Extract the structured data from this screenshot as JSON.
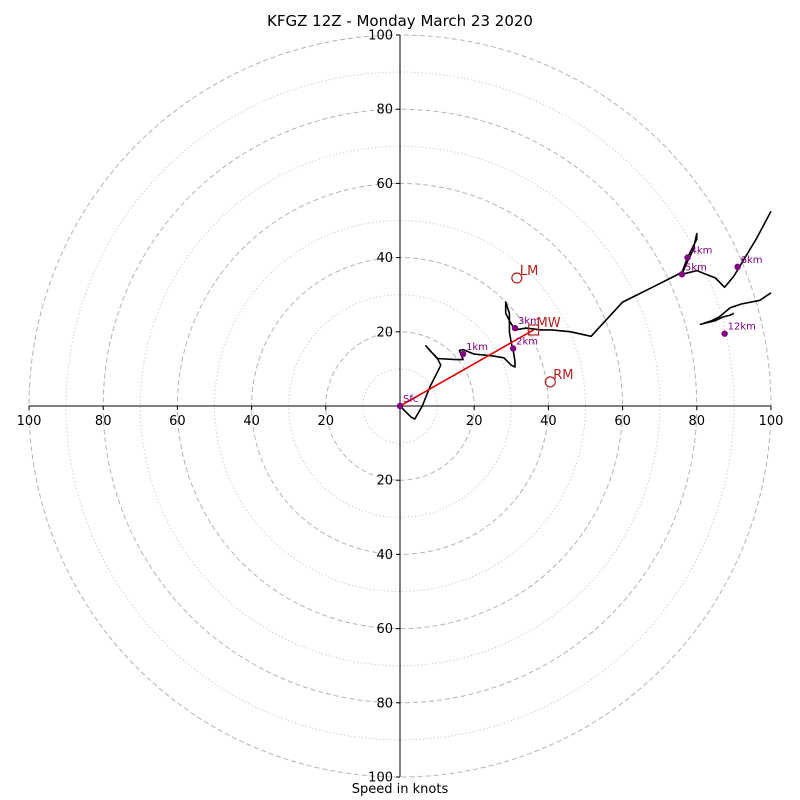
{
  "chart_data": {
    "type": "line",
    "title": "KFGZ 12Z - Monday March 23 2020",
    "xlabel": "Speed in knots",
    "ylabel": "",
    "xlim": [
      -100,
      100
    ],
    "ylim": [
      -100,
      100
    ],
    "rings_dashed": [
      20,
      40,
      60,
      80,
      100
    ],
    "rings_dotted": [
      10,
      30,
      50,
      70,
      90
    ],
    "tick_labels": {
      "top": [
        "20",
        "40",
        "60",
        "80",
        "100"
      ],
      "bottom": [
        "20",
        "40",
        "60",
        "80",
        "100"
      ],
      "left": [
        "20",
        "40",
        "60",
        "80",
        "100"
      ],
      "right": [
        "20",
        "40",
        "60",
        "80",
        "100"
      ]
    },
    "hodograph": {
      "color": "#000000",
      "points": [
        [
          0.0,
          0.0
        ],
        [
          2,
          -2
        ],
        [
          3,
          -3
        ],
        [
          4,
          -3.5
        ],
        [
          6,
          0
        ],
        [
          8,
          5
        ],
        [
          10,
          9
        ],
        [
          11,
          11
        ],
        [
          10,
          13
        ],
        [
          8,
          15
        ],
        [
          7,
          16.2
        ],
        [
          10,
          12.8
        ],
        [
          15,
          12.5
        ],
        [
          17,
          12.5
        ],
        [
          16,
          15
        ],
        [
          17,
          15.2
        ],
        [
          20,
          14
        ],
        [
          25,
          13.5
        ],
        [
          28,
          13
        ],
        [
          30,
          11
        ],
        [
          31,
          10.5
        ],
        [
          31,
          12
        ],
        [
          30.5,
          15
        ],
        [
          30,
          17
        ],
        [
          29.5,
          20
        ],
        [
          29.5,
          23
        ],
        [
          28.5,
          25
        ],
        [
          28.5,
          28
        ],
        [
          29.5,
          25
        ],
        [
          29.5,
          23
        ],
        [
          31,
          20.5
        ],
        [
          34,
          21
        ],
        [
          38,
          20.5
        ],
        [
          41,
          20.5
        ],
        [
          46,
          20
        ],
        [
          51.5,
          18.8
        ],
        [
          60,
          28
        ],
        [
          68,
          32
        ],
        [
          74,
          35
        ],
        [
          76,
          36
        ],
        [
          77.5,
          40
        ],
        [
          79,
          43
        ],
        [
          80,
          45
        ],
        [
          80,
          46.5
        ],
        [
          79,
          42
        ],
        [
          77,
          38
        ],
        [
          76,
          35.5
        ],
        [
          80,
          36.5
        ],
        [
          85,
          34.5
        ],
        [
          87.5,
          32
        ],
        [
          90,
          35
        ],
        [
          93,
          40
        ],
        [
          96,
          45
        ],
        [
          100,
          52.5
        ]
      ]
    },
    "hodograph_upper_segment": {
      "points": [
        [
          100,
          30.5
        ],
        [
          97,
          28.5
        ],
        [
          92,
          27.5
        ],
        [
          89,
          26.5
        ],
        [
          86,
          24
        ],
        [
          84,
          23
        ],
        [
          81,
          22
        ],
        [
          83,
          22.5
        ],
        [
          85,
          23
        ],
        [
          87,
          24
        ],
        [
          89,
          24.5
        ],
        [
          90,
          25
        ]
      ]
    },
    "height_markers": [
      {
        "label": "Sfc",
        "u": 0,
        "v": 0
      },
      {
        "label": "1km",
        "u": 17,
        "v": 14
      },
      {
        "label": "2km",
        "u": 30.5,
        "v": 15.5
      },
      {
        "label": "3km",
        "u": 31,
        "v": 21
      },
      {
        "label": "4km",
        "u": 77.5,
        "v": 40
      },
      {
        "label": "5km",
        "u": 76,
        "v": 35.5
      },
      {
        "label": "6km",
        "u": 91,
        "v": 37.5
      },
      {
        "label": "12km",
        "u": 87.5,
        "v": 19.5
      }
    ],
    "marker_color": "#800080",
    "storm_motion": [
      {
        "label": "LM",
        "u": 31.5,
        "v": 34.5
      },
      {
        "label": "MW",
        "u": 36,
        "v": 20.5
      },
      {
        "label": "RM",
        "u": 40.5,
        "v": 6.5
      }
    ],
    "storm_motion_color": "#b22222",
    "shear_vector": {
      "from": [
        0,
        0
      ],
      "to": [
        36,
        20.5
      ],
      "color": "#e00000"
    }
  }
}
